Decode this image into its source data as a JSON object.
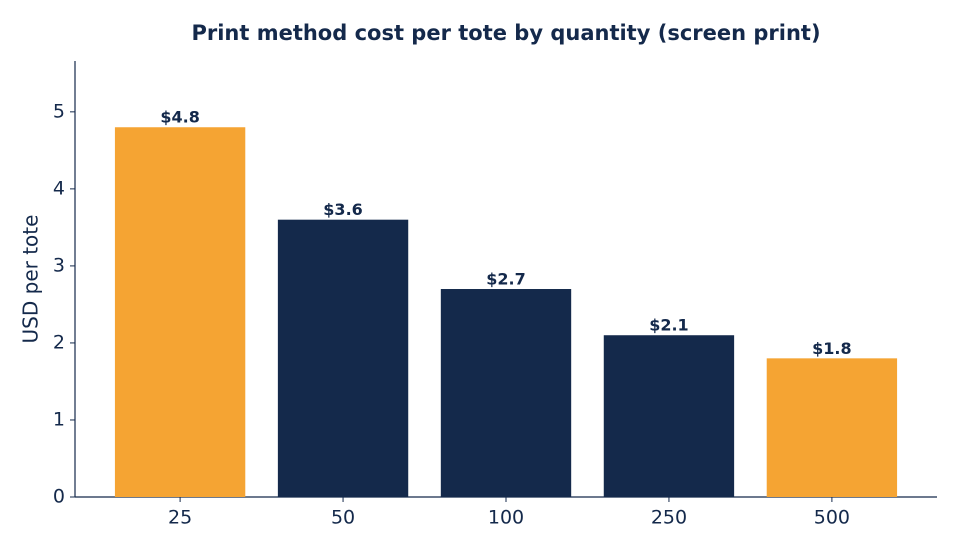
{
  "chart_data": {
    "type": "bar",
    "title": "Print method cost per tote by quantity (screen print)",
    "y_label": "USD per tote",
    "categories": [
      "25",
      "50",
      "100",
      "250",
      "500"
    ],
    "values": [
      4.8,
      3.6,
      2.7,
      2.1,
      1.8
    ],
    "value_labels": [
      "$4.8",
      "$3.6",
      "$2.7",
      "$2.1",
      "$1.8"
    ],
    "colors": [
      "#f5a433",
      "#14294b",
      "#14294b",
      "#14294b",
      "#f5a433"
    ],
    "ylim": [
      0,
      5.66
    ],
    "yticks": [
      0,
      1,
      2,
      3,
      4,
      5
    ],
    "grid": false
  }
}
